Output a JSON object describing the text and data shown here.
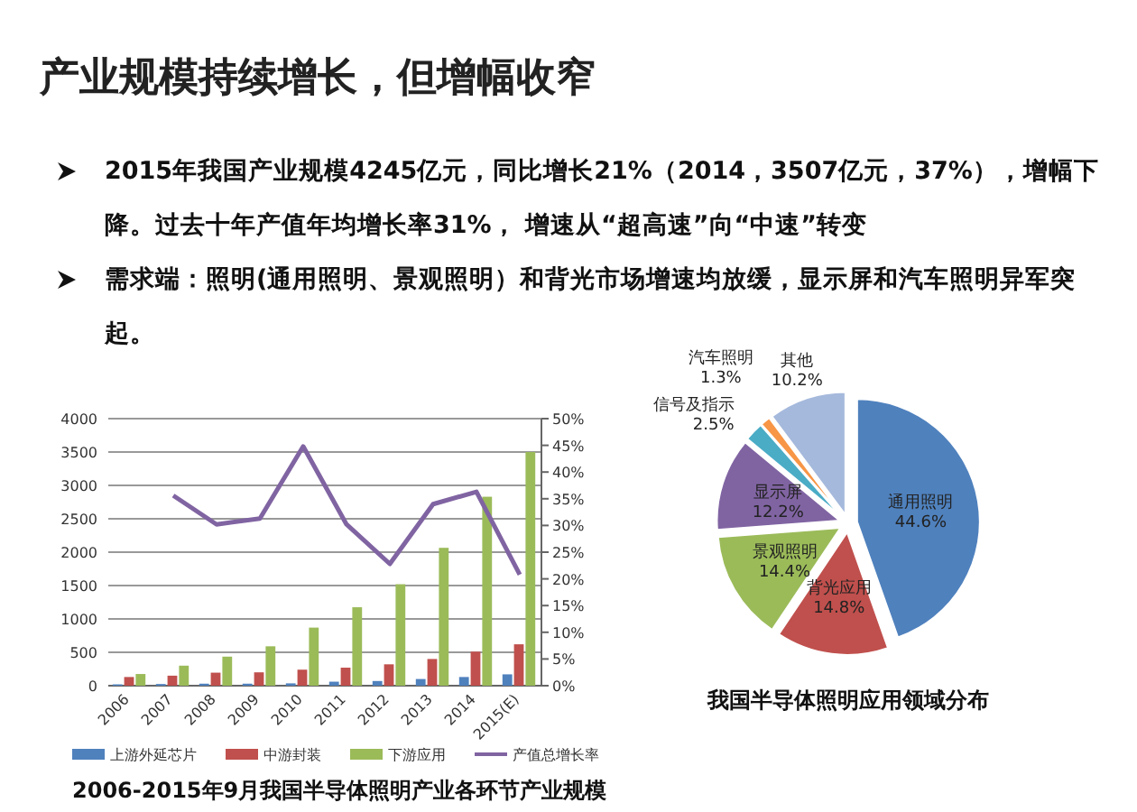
{
  "chart_data": [
    {
      "type": "bar",
      "title": "产业规模持续增长，但增幅收窄",
      "annotations": [
        "2015年我国产业规模4245亿元，同比增长21%（2014，3507亿元，37%），增幅下降。过去十年产值年均增长率31%， 增速从“超高速”向“中速”转变",
        "需求端：照明(通用照明、景观照明）和背光市场增速均放缓，显示屏和汽车照明异军突起。",
        "2006-2015年9月我国半导体照明产业各环节产业规模"
      ],
      "categories": [
        "2006",
        "2007",
        "2008",
        "2009",
        "2010",
        "2011",
        "2012",
        "2013",
        "2014",
        "2015(E)"
      ],
      "series": [
        {
          "name": "上游外延芯片",
          "color": "#4f81bd",
          "values": [
            20,
            25,
            30,
            30,
            35,
            60,
            70,
            100,
            130,
            170
          ]
        },
        {
          "name": "中游封装",
          "color": "#c0504d",
          "values": [
            130,
            150,
            195,
            200,
            240,
            270,
            320,
            400,
            510,
            620
          ]
        },
        {
          "name": "下游应用",
          "color": "#9bbb59",
          "values": [
            175,
            300,
            435,
            590,
            870,
            1175,
            1520,
            2065,
            2830,
            3500
          ]
        },
        {
          "name": "产值总增长率",
          "type": "line",
          "axis": "y2",
          "color": "#8064a2",
          "values": [
            null,
            35.6,
            30.2,
            31.3,
            44.8,
            30.2,
            22.8,
            34,
            36.3,
            20.8
          ]
        }
      ],
      "ylim": [
        0,
        4000
      ],
      "yticks": [
        0,
        500,
        1000,
        1500,
        2000,
        2500,
        3000,
        3500,
        4000
      ],
      "y2lim": [
        0,
        50
      ],
      "y2ticks": [
        {
          "value": 0,
          "label": "0%"
        },
        {
          "value": 5,
          "label": "5%"
        },
        {
          "value": 10,
          "label": "10%"
        },
        {
          "value": 15,
          "label": "15%"
        },
        {
          "value": 20,
          "label": "20%"
        },
        {
          "value": 25,
          "label": "25%"
        },
        {
          "value": 30,
          "label": "30%"
        },
        {
          "value": 35,
          "label": "35%"
        },
        {
          "value": 40,
          "label": "40%"
        },
        {
          "value": 45,
          "label": "45%"
        },
        {
          "value": 50,
          "label": "50%"
        }
      ],
      "grid": "y",
      "legend": "bottom",
      "marker": "none"
    },
    {
      "type": "pie",
      "title": "我国半导体照明应用领域分布",
      "categories": [
        "通用照明",
        "背光应用",
        "景观照明",
        "显示屏",
        "信号及指示",
        "汽车照明",
        "其他"
      ],
      "values": [
        44.6,
        14.8,
        14.4,
        12.2,
        2.5,
        1.3,
        10.2
      ],
      "colors": [
        "#4f81bd",
        "#c0504d",
        "#9bbb59",
        "#8064a2",
        "#4bacc6",
        "#f79646",
        "#a5b9dc"
      ],
      "value_labels": [
        "44.6%",
        "14.8%",
        "14.4%",
        "12.2%",
        "2.5%",
        "1.3%",
        "10.2%"
      ]
    }
  ]
}
